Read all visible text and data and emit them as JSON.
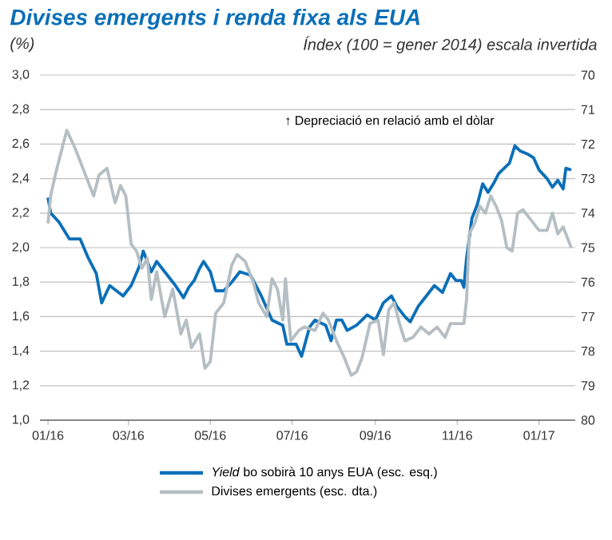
{
  "chart_data": {
    "type": "line",
    "title": "Divises emergents i renda fixa als EUA",
    "ylabel": "(%)",
    "y2label": "Índex (100 = gener 2014) escala invertida",
    "annotations": [
      "↑ Depreciació en relació amb el dòlar"
    ],
    "xlim": [
      "2015-12-26",
      "2017-01-28"
    ],
    "xticks": [
      {
        "value": "2016-01-01",
        "label": "01/16"
      },
      {
        "value": "2016-03-01",
        "label": "03/16"
      },
      {
        "value": "2016-05-01",
        "label": "05/16"
      },
      {
        "value": "2016-07-01",
        "label": "07/16"
      },
      {
        "value": "2016-09-01",
        "label": "09/16"
      },
      {
        "value": "2016-11-01",
        "label": "11/16"
      },
      {
        "value": "2017-01-01",
        "label": "01/17"
      }
    ],
    "ylim": [
      1.0,
      3.0
    ],
    "yticks": [
      {
        "value": 1.0,
        "label": "1,0"
      },
      {
        "value": 1.2,
        "label": "1,2"
      },
      {
        "value": 1.4,
        "label": "1,4"
      },
      {
        "value": 1.6,
        "label": "1,6"
      },
      {
        "value": 1.8,
        "label": "1,8"
      },
      {
        "value": 2.0,
        "label": "2,0"
      },
      {
        "value": 2.2,
        "label": "2,2"
      },
      {
        "value": 2.4,
        "label": "2,4"
      },
      {
        "value": 2.6,
        "label": "2,6"
      },
      {
        "value": 2.8,
        "label": "2,8"
      },
      {
        "value": 3.0,
        "label": "3,0"
      }
    ],
    "y2lim": [
      80,
      70
    ],
    "y2ticks": [
      70,
      71,
      72,
      73,
      74,
      75,
      76,
      77,
      78,
      79,
      80
    ],
    "grid": "y",
    "legend": "bottom",
    "marker": "none",
    "line_style": "solid",
    "series": [
      {
        "name": "*Yield* bo sobirà 10 anys EUA (esc. esq.)",
        "color": "#0b6fb8",
        "x": [
          "2016-01-01",
          "2016-01-03",
          "2016-01-09",
          "2016-01-17",
          "2016-01-25",
          "2016-01-31",
          "2016-02-06",
          "2016-02-10",
          "2016-02-16",
          "2016-02-26",
          "2016-03-03",
          "2016-03-09",
          "2016-03-12",
          "2016-03-18",
          "2016-03-22",
          "2016-03-28",
          "2016-04-05",
          "2016-04-11",
          "2016-04-15",
          "2016-04-19",
          "2016-04-23",
          "2016-04-26",
          "2016-05-01",
          "2016-05-05",
          "2016-05-11",
          "2016-05-17",
          "2016-05-23",
          "2016-05-31",
          "2016-06-08",
          "2016-06-16",
          "2016-06-24",
          "2016-06-27",
          "2016-07-04",
          "2016-07-08",
          "2016-07-14",
          "2016-07-18",
          "2016-07-26",
          "2016-07-30",
          "2016-08-03",
          "2016-08-07",
          "2016-08-11",
          "2016-08-18",
          "2016-08-26",
          "2016-09-01",
          "2016-09-07",
          "2016-09-13",
          "2016-09-17",
          "2016-09-23",
          "2016-09-27",
          "2016-10-03",
          "2016-10-09",
          "2016-10-15",
          "2016-10-21",
          "2016-10-27",
          "2016-10-31",
          "2016-11-04",
          "2016-11-06",
          "2016-11-08",
          "2016-11-12",
          "2016-11-16",
          "2016-11-20",
          "2016-11-24",
          "2016-11-28",
          "2016-12-02",
          "2016-12-06",
          "2016-12-10",
          "2016-12-14",
          "2016-12-18",
          "2016-12-24",
          "2016-12-28",
          "2017-01-01",
          "2017-01-07",
          "2017-01-11",
          "2017-01-15",
          "2017-01-19",
          "2017-01-21",
          "2017-01-25"
        ],
        "values": [
          2.29,
          2.2,
          2.15,
          2.05,
          2.05,
          1.94,
          1.85,
          1.68,
          1.78,
          1.72,
          1.78,
          1.89,
          1.98,
          1.86,
          1.92,
          1.86,
          1.78,
          1.71,
          1.77,
          1.81,
          1.88,
          1.92,
          1.86,
          1.75,
          1.75,
          1.8,
          1.86,
          1.84,
          1.72,
          1.58,
          1.55,
          1.44,
          1.44,
          1.37,
          1.54,
          1.58,
          1.55,
          1.46,
          1.58,
          1.58,
          1.52,
          1.55,
          1.61,
          1.58,
          1.68,
          1.72,
          1.66,
          1.6,
          1.57,
          1.66,
          1.72,
          1.78,
          1.74,
          1.85,
          1.81,
          1.81,
          1.77,
          1.94,
          2.17,
          2.25,
          2.37,
          2.32,
          2.37,
          2.43,
          2.46,
          2.49,
          2.59,
          2.56,
          2.54,
          2.52,
          2.45,
          2.4,
          2.35,
          2.39,
          2.34,
          2.46,
          2.45
        ]
      },
      {
        "name": "Divises emergents (esc. dta.)",
        "color": "#b4bec3",
        "axis": "y2",
        "x": [
          "2016-01-01",
          "2016-01-03",
          "2016-01-07",
          "2016-01-11",
          "2016-01-15",
          "2016-01-21",
          "2016-01-29",
          "2016-02-04",
          "2016-02-08",
          "2016-02-14",
          "2016-02-20",
          "2016-02-24",
          "2016-02-28",
          "2016-03-03",
          "2016-03-07",
          "2016-03-11",
          "2016-03-15",
          "2016-03-18",
          "2016-03-22",
          "2016-03-28",
          "2016-04-03",
          "2016-04-09",
          "2016-04-13",
          "2016-04-17",
          "2016-04-23",
          "2016-04-27",
          "2016-05-01",
          "2016-05-05",
          "2016-05-11",
          "2016-05-17",
          "2016-05-21",
          "2016-05-27",
          "2016-06-02",
          "2016-06-06",
          "2016-06-12",
          "2016-06-16",
          "2016-06-20",
          "2016-06-24",
          "2016-06-26",
          "2016-06-30",
          "2016-07-06",
          "2016-07-10",
          "2016-07-18",
          "2016-07-24",
          "2016-07-28",
          "2016-08-03",
          "2016-08-09",
          "2016-08-14",
          "2016-08-18",
          "2016-08-22",
          "2016-08-28",
          "2016-09-03",
          "2016-09-07",
          "2016-09-11",
          "2016-09-15",
          "2016-09-19",
          "2016-09-23",
          "2016-09-29",
          "2016-10-05",
          "2016-10-11",
          "2016-10-17",
          "2016-10-23",
          "2016-10-27",
          "2016-11-02",
          "2016-11-06",
          "2016-11-08",
          "2016-11-10",
          "2016-11-14",
          "2016-11-18",
          "2016-11-22",
          "2016-11-26",
          "2016-11-30",
          "2016-12-04",
          "2016-12-08",
          "2016-12-12",
          "2016-12-16",
          "2016-12-20",
          "2016-12-26",
          "2017-01-01",
          "2017-01-07",
          "2017-01-11",
          "2017-01-15",
          "2017-01-19",
          "2017-01-23",
          "2017-01-25"
        ],
        "values": [
          74.3,
          73.5,
          72.8,
          72.2,
          71.6,
          72.1,
          72.9,
          73.5,
          72.9,
          72.7,
          73.7,
          73.2,
          73.5,
          74.9,
          75.1,
          75.6,
          75.3,
          76.5,
          75.7,
          77.0,
          76.2,
          77.5,
          77.1,
          77.9,
          77.5,
          78.5,
          78.3,
          76.9,
          76.6,
          75.5,
          75.2,
          75.4,
          76.0,
          76.6,
          77.0,
          75.9,
          76.2,
          77.1,
          75.9,
          77.7,
          77.4,
          77.3,
          77.4,
          76.9,
          77.1,
          77.7,
          78.2,
          78.7,
          78.6,
          78.2,
          77.2,
          77.1,
          78.1,
          76.8,
          76.6,
          77.2,
          77.7,
          77.6,
          77.3,
          77.5,
          77.3,
          77.6,
          77.2,
          77.2,
          77.2,
          76.5,
          74.6,
          74.3,
          73.8,
          74.0,
          73.5,
          73.8,
          74.2,
          75.0,
          75.1,
          74.0,
          73.9,
          74.2,
          74.5,
          74.5,
          74.0,
          74.6,
          74.4,
          74.8,
          75.0
        ]
      }
    ]
  }
}
